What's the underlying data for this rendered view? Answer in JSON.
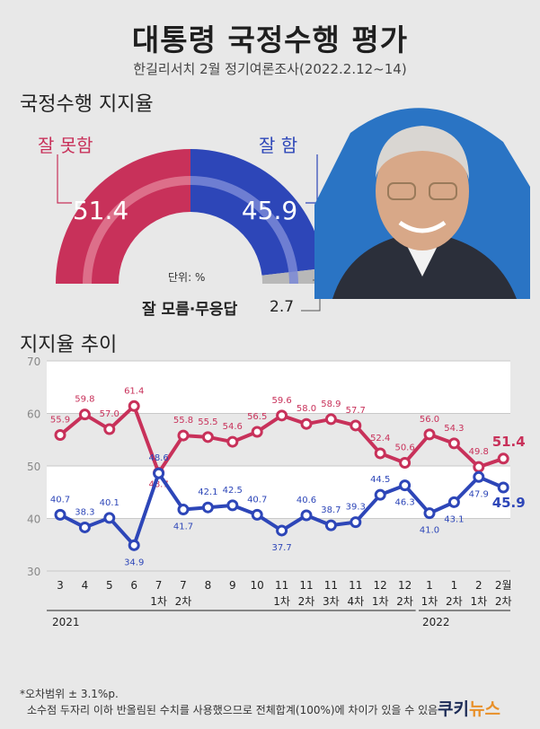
{
  "header": {
    "title": "대통령 국정수행 평가",
    "subtitle": "한길리서치 2월 정기여론조사(2022.2.12~14)"
  },
  "gauge": {
    "section_title": "국정수행 지지율",
    "negative_label": "잘 못함",
    "negative_value": "51.4",
    "positive_label": "잘 함",
    "positive_value": "45.9",
    "unknown_label": "잘 모름·무응답",
    "unknown_value": "2.7",
    "unit": "단위: %",
    "colors": {
      "negative": "#c8315a",
      "positive": "#2d46b8",
      "unknown": "#b8b8b8"
    }
  },
  "trend_title": "지지율 추이",
  "chart_data": {
    "type": "line",
    "x": [
      "3",
      "4",
      "5",
      "6",
      "7\n1차",
      "7\n2차",
      "8",
      "9",
      "10",
      "11\n1차",
      "11\n2차",
      "11\n3차",
      "11\n4차",
      "12\n1차",
      "12\n2차",
      "1\n1차",
      "1\n2차",
      "2\n1차",
      "2월\n2차"
    ],
    "year_labels": [
      "2021",
      "2022"
    ],
    "ylim": [
      30,
      70
    ],
    "yticks": [
      "30",
      "40",
      "50",
      "60",
      "70"
    ],
    "series": [
      {
        "color": "#c8315a",
        "values": [
          55.9,
          59.8,
          57.0,
          61.4,
          48.7,
          55.8,
          55.5,
          54.6,
          56.5,
          59.6,
          58.0,
          58.9,
          57.7,
          52.4,
          50.6,
          56.0,
          54.3,
          49.8,
          51.4
        ]
      },
      {
        "color": "#2d46b8",
        "values": [
          40.7,
          38.3,
          40.1,
          34.9,
          48.6,
          41.7,
          42.1,
          42.5,
          40.7,
          37.7,
          40.6,
          38.7,
          39.3,
          44.5,
          46.3,
          41.0,
          43.1,
          47.9,
          45.9
        ]
      }
    ],
    "grid": true
  },
  "footnotes": {
    "line1": "*오차범위 ± 3.1%p.",
    "line2": "소수점 두자리 이하 반올림된 수치를 사용했으므로 전체합계(100%)에 차이가 있을 수 있음"
  },
  "logo": {
    "part1": "쿠키",
    "part2": "뉴스"
  }
}
